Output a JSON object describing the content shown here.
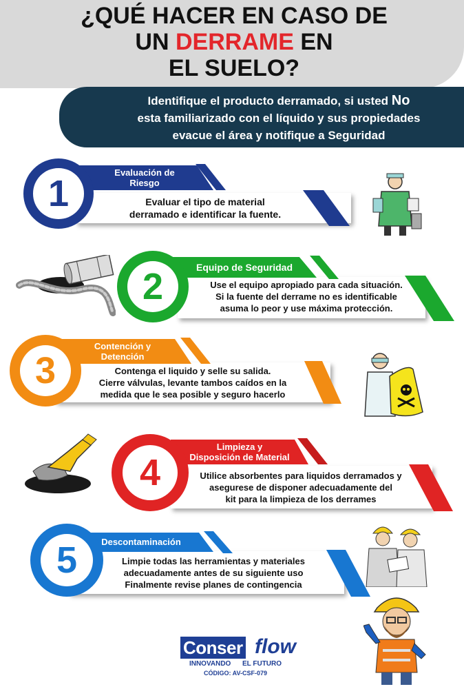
{
  "header": {
    "title_line1": "¿QUÉ HACER EN CASO DE",
    "title_line2_pre": "UN ",
    "title_line2_highlight": "DERRAME",
    "title_line2_post": " EN",
    "title_line3": "EL SUELO?"
  },
  "intro": {
    "line1_pre": "Identifique el producto derramado, si usted ",
    "line1_bold": "No",
    "line2": "esta familiarizado con el líquido y sus propiedades",
    "line3": "evacue el área y notifique a Seguridad"
  },
  "steps": [
    {
      "number": "1",
      "title_line1": "Evaluación de",
      "title_line2": "Riesgo",
      "desc_line1": "Evaluar el tipo de material",
      "desc_line2": "derramado e identificar la fuente.",
      "desc_line3": "",
      "color": "#1f3b8f",
      "illustration": "worker-in-apron-icon"
    },
    {
      "number": "2",
      "title_line1": "Equipo de Seguridad",
      "title_line2": "",
      "desc_line1": "Use el equipo apropiado para cada situación.",
      "desc_line2": "Si la fuente del derrame no es identificable",
      "desc_line3": "asuma lo peor y use máxima protección.",
      "color": "#1ba82e",
      "illustration": "spilled-barrel-icon"
    },
    {
      "number": "3",
      "title_line1": "Contención y",
      "title_line2": "Detención",
      "desc_line1": "Contenga el liquido y selle su salida.",
      "desc_line2": "Cierre válvulas, levante tambos caídos en la",
      "desc_line3": "medida que le sea posible y seguro hacerlo",
      "color": "#f28c13",
      "illustration": "hazmat-bag-icon"
    },
    {
      "number": "4",
      "title_line1": "Limpieza y",
      "title_line2": "Disposición de Material",
      "desc_line1": "Utilice absorbentes para liquidos derramados y",
      "desc_line2": "asegurese de disponer adecuadamente del",
      "desc_line3": "kit para la limpieza de los derrames",
      "color": "#e02424",
      "illustration": "gloved-hand-cleaning-icon"
    },
    {
      "number": "5",
      "title_line1": "Descontaminación",
      "title_line2": "",
      "desc_line1": "Limpie todas las herramientas y materiales",
      "desc_line2": "adecuadamente antes de su siguiente uso",
      "desc_line3": "Finalmente revise planes de contingencia",
      "color": "#1877d1",
      "illustration": "engineers-reviewing-icon"
    }
  ],
  "footer": {
    "logo_part1": "Conser",
    "logo_part2": "flow",
    "tagline": "INNOVANDO      EL FUTURO",
    "code": "CÓDIGO: AV-CSF-079",
    "mascot": "safety-worker-thumbs-up-icon"
  }
}
